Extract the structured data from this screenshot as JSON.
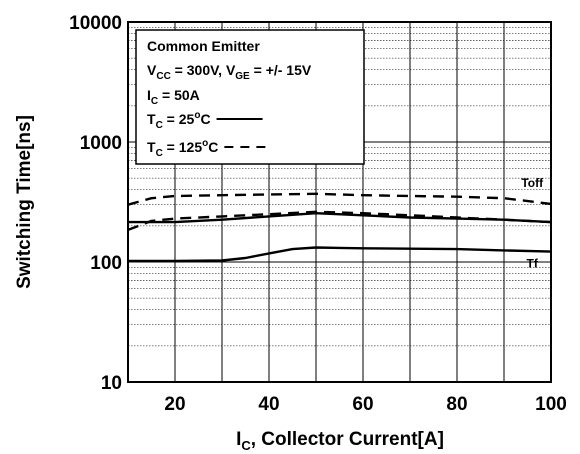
{
  "chart_data": {
    "type": "line",
    "xlabel": {
      "main": "I",
      "sub": "C",
      "rest": ", Collector Current[A]"
    },
    "ylabel": "Switching Time[ns]",
    "xlim": [
      10,
      100
    ],
    "ylim": [
      10,
      10000
    ],
    "yscale": "log",
    "grid": true,
    "x_ticks": [
      "20",
      "40",
      "60",
      "80",
      "100"
    ],
    "y_ticks": [
      "10",
      "100",
      "1000",
      "10000"
    ],
    "legend": {
      "position": "top-left",
      "title": "Common Emitter",
      "lines": [
        {
          "parts": [
            [
              "V",
              ""
            ],
            [
              "CC",
              "sub"
            ],
            [
              " = 300V, V",
              ""
            ],
            [
              "GE",
              "sub"
            ],
            [
              " = +/- 15V",
              ""
            ]
          ]
        },
        {
          "parts": [
            [
              "I",
              ""
            ],
            [
              "C",
              "sub"
            ],
            [
              " = 50A",
              ""
            ]
          ]
        },
        {
          "parts": [
            [
              "T",
              ""
            ],
            [
              "C",
              "sub"
            ],
            [
              " = 25",
              ""
            ],
            [
              "o",
              "sup"
            ],
            [
              "C",
              ""
            ]
          ],
          "style": "solid"
        },
        {
          "parts": [
            [
              "T",
              ""
            ],
            [
              "C",
              "sub"
            ],
            [
              " = 125",
              ""
            ],
            [
              "o",
              "sup"
            ],
            [
              "C",
              ""
            ]
          ],
          "style": "dashed"
        }
      ]
    },
    "annotations": [
      {
        "text": "Toff",
        "x": 96,
        "y": 420
      },
      {
        "text": "Tf",
        "x": 96,
        "y": 90
      }
    ],
    "series": [
      {
        "label": "Toff",
        "condition": "Tc=25C",
        "style": "solid",
        "x": [
          10,
          20,
          30,
          40,
          50,
          60,
          70,
          80,
          90,
          100
        ],
        "y": [
          215,
          215,
          225,
          240,
          255,
          245,
          235,
          230,
          225,
          215
        ]
      },
      {
        "label": "Toff",
        "condition": "Tc=125C",
        "style": "dashed",
        "x": [
          10,
          15,
          20,
          30,
          40,
          50,
          60,
          70,
          80,
          90,
          100
        ],
        "y": [
          300,
          340,
          355,
          360,
          365,
          370,
          360,
          355,
          350,
          340,
          305
        ]
      },
      {
        "label": "Tf",
        "condition": "Tc=25C",
        "style": "solid",
        "x": [
          10,
          20,
          30,
          35,
          40,
          45,
          50,
          55,
          60,
          70,
          80,
          90,
          100
        ],
        "y": [
          102,
          102,
          103,
          108,
          118,
          128,
          132,
          131,
          130,
          129,
          128,
          125,
          122
        ]
      },
      {
        "label": "Tf",
        "condition": "Tc=125C",
        "style": "dashed",
        "x": [
          10,
          15,
          20,
          30,
          40,
          50,
          60,
          70,
          80,
          90,
          100
        ],
        "y": [
          185,
          220,
          230,
          240,
          250,
          262,
          255,
          245,
          235,
          225,
          215
        ]
      }
    ]
  }
}
